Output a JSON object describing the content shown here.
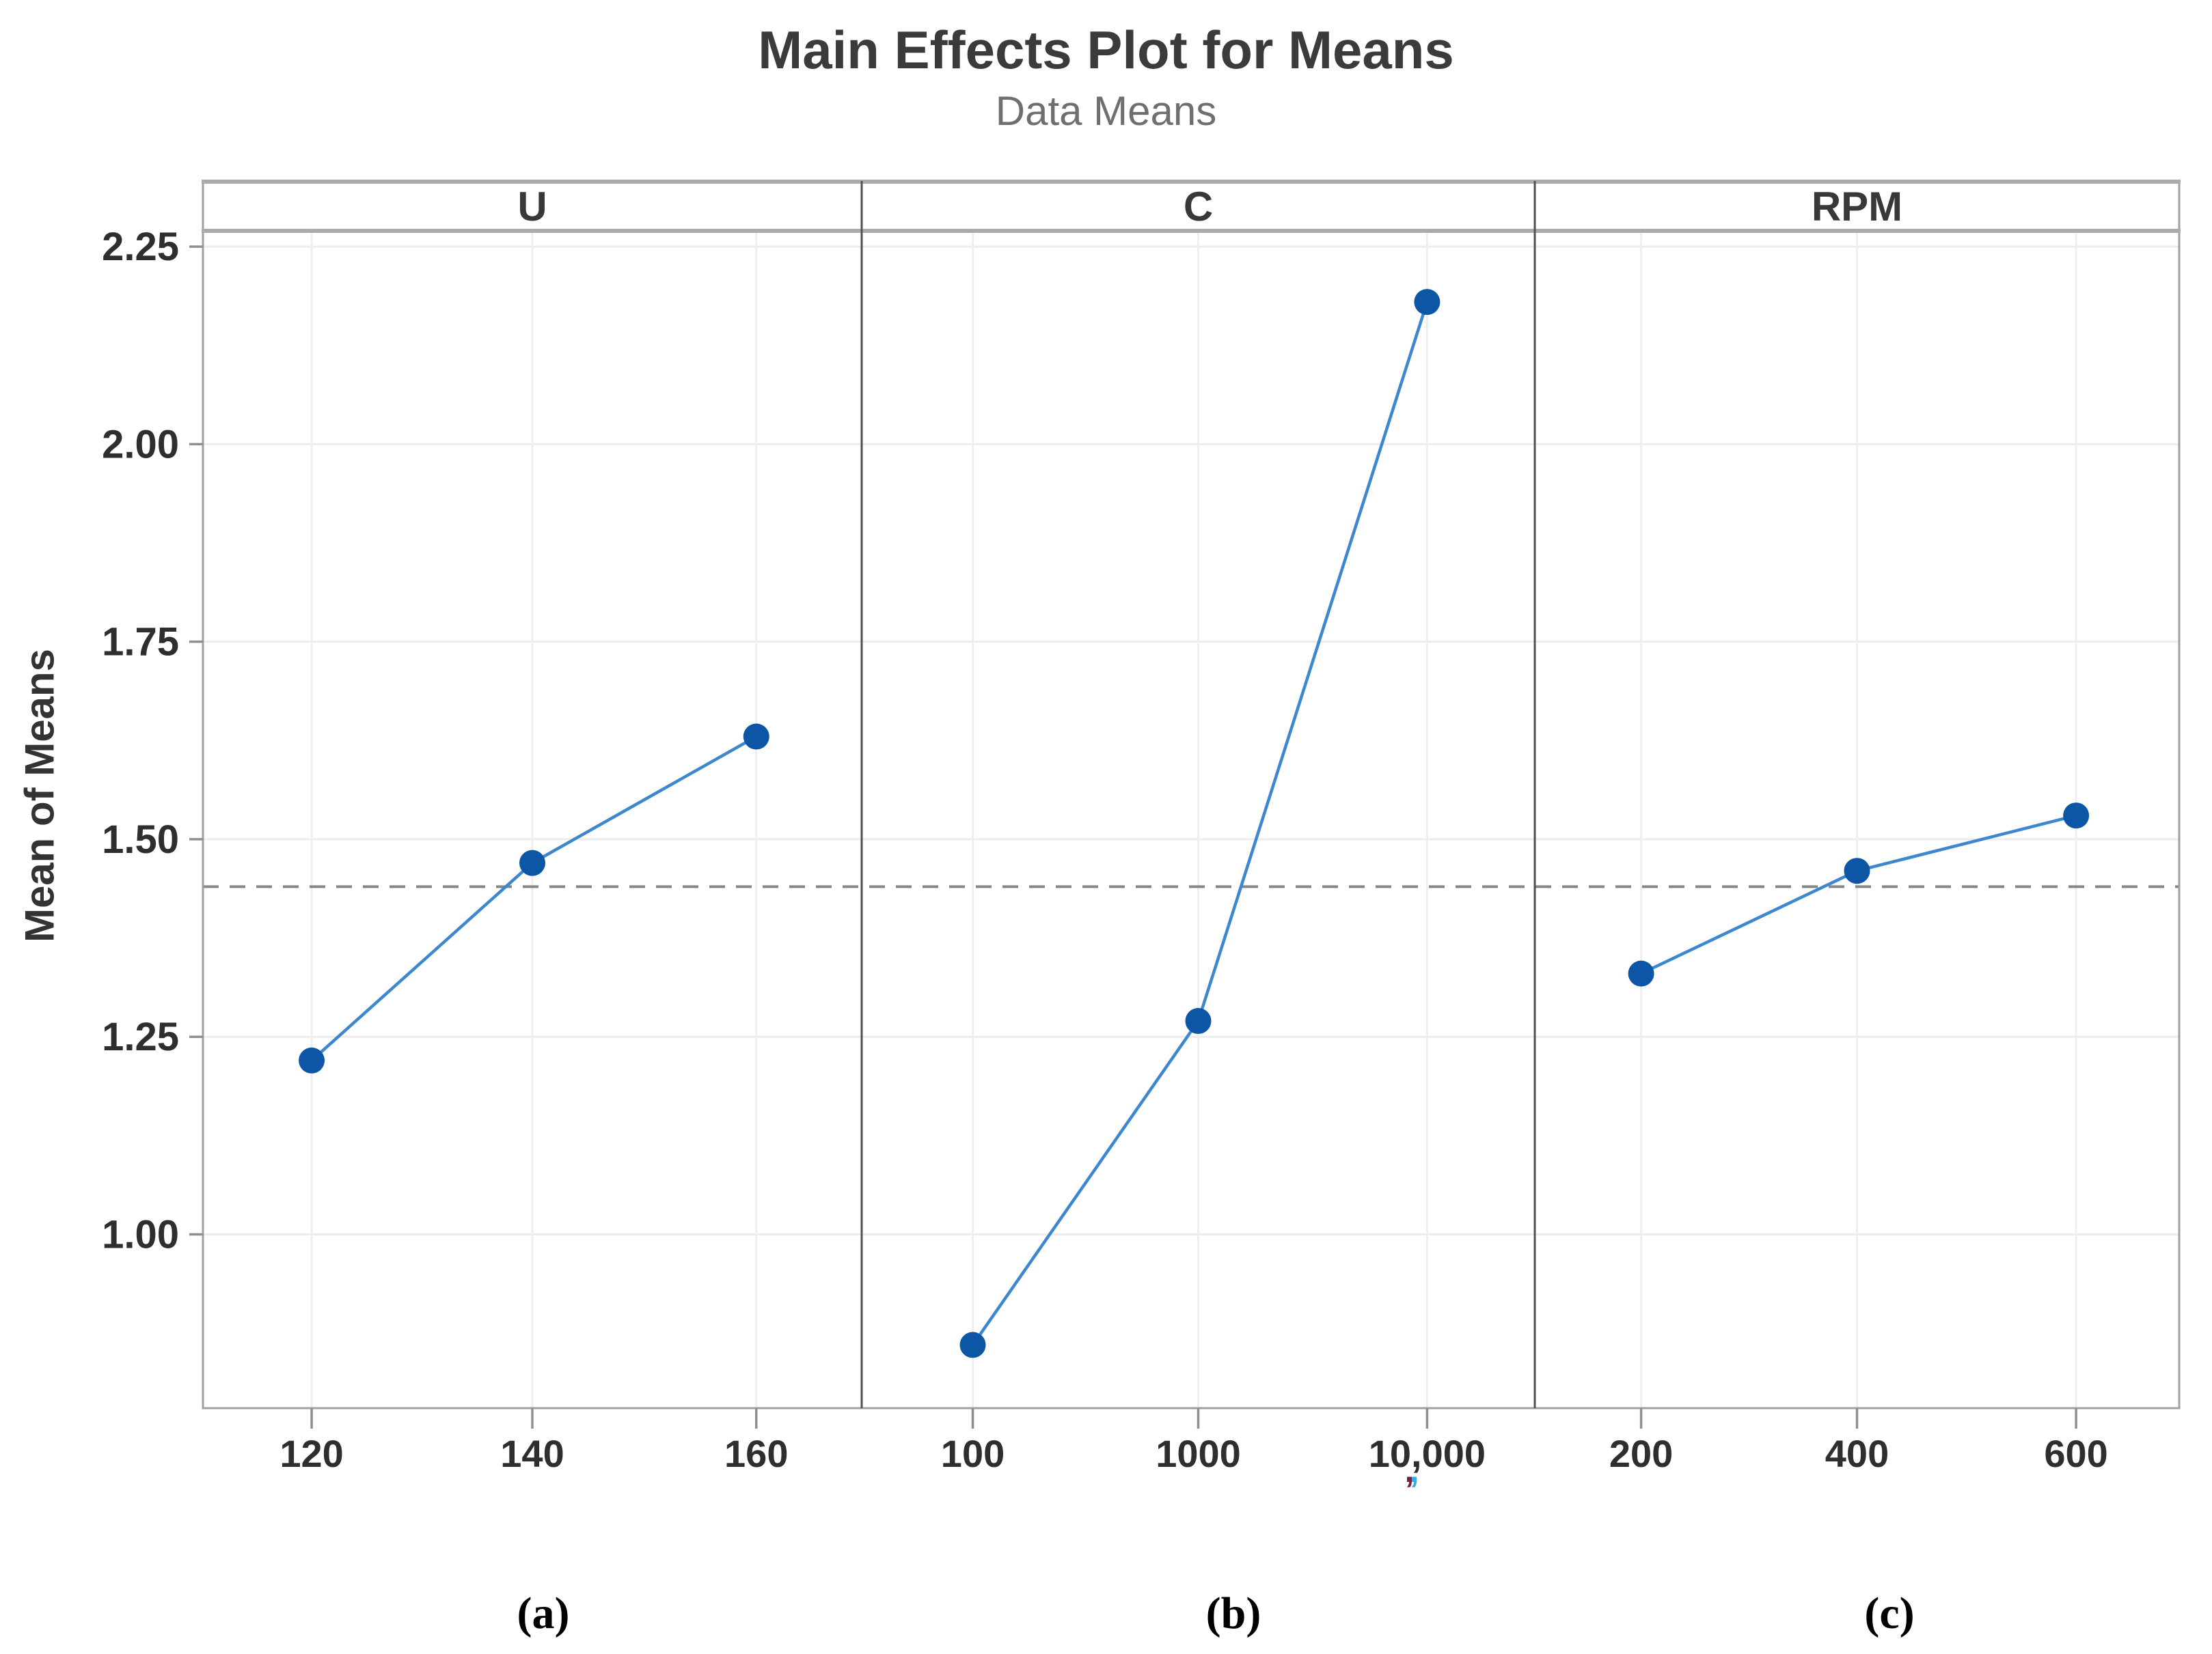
{
  "chart_data": {
    "type": "line",
    "title": "Main Effects Plot for Means",
    "subtitle": "Data Means",
    "ylabel": "Mean of Means",
    "ylim": [
      0.78,
      2.27
    ],
    "yticks": [
      1.0,
      1.25,
      1.5,
      1.75,
      2.0,
      2.25
    ],
    "ytick_labels": [
      "1.00",
      "1.25",
      "1.50",
      "1.75",
      "2.00",
      "2.25"
    ],
    "reference_line": 1.44,
    "grid": true,
    "legend": "none",
    "panels": [
      {
        "label": "U",
        "letter": "(a)",
        "categories": [
          "120",
          "140",
          "160"
        ],
        "values": [
          1.22,
          1.47,
          1.63
        ]
      },
      {
        "label": "C",
        "letter": "(b)",
        "categories": [
          "100",
          "1000",
          "10,000"
        ],
        "values": [
          0.86,
          1.27,
          2.18
        ]
      },
      {
        "label": "RPM",
        "letter": "(c)",
        "categories": [
          "200",
          "400",
          "600"
        ],
        "values": [
          1.33,
          1.46,
          1.53
        ]
      }
    ],
    "colors": {
      "marker": "#0d56a6",
      "line": "#3c87ce",
      "reference_line": "#868686",
      "gridline": "#ededed",
      "frame": "#a0a0a0",
      "band_border": "#ababab",
      "panel_divider": "#505050",
      "tick": "#8f8f8f",
      "tick_label": "#2e2e2e",
      "header_label": "#383838",
      "title": "#3b3b3b",
      "subtitle": "#6f6f6f",
      "comma_artifact_maroon": "#7c1f3e",
      "comma_artifact_cyan": "#35aede"
    }
  }
}
